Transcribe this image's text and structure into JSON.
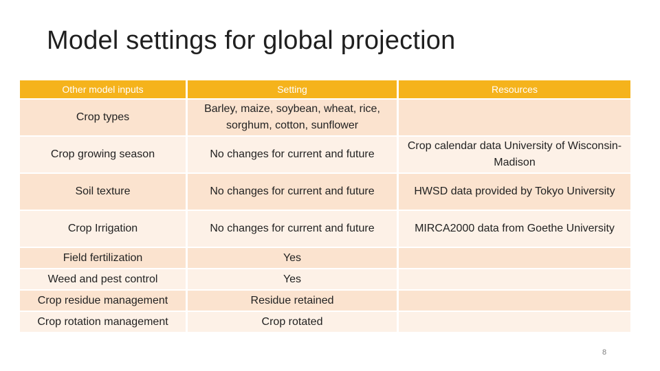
{
  "slide": {
    "title": "Model settings for global projection",
    "page_number": "8"
  },
  "table": {
    "headers": [
      "Other model inputs",
      "Setting",
      "Resources"
    ],
    "rows": [
      [
        "Crop types",
        "Barley, maize, soybean, wheat, rice, sorghum, cotton, sunflower",
        ""
      ],
      [
        "Crop growing season",
        "No changes for current and future",
        "Crop calendar data University of Wisconsin-Madison"
      ],
      [
        "Soil texture",
        "No changes for current and future",
        "HWSD data provided by Tokyo University"
      ],
      [
        "Crop Irrigation",
        "No changes for current and future",
        "MIRCA2000 data from Goethe University"
      ],
      [
        "Field fertilization",
        "Yes",
        ""
      ],
      [
        "Weed and pest control",
        "Yes",
        ""
      ],
      [
        "Crop residue management",
        "Residue retained",
        ""
      ],
      [
        "Crop rotation management",
        "Crop rotated",
        ""
      ]
    ]
  },
  "colors": {
    "header_bg": "#f5b31c",
    "row_odd_bg": "#fbe3cf",
    "row_even_bg": "#fdf1e7"
  }
}
